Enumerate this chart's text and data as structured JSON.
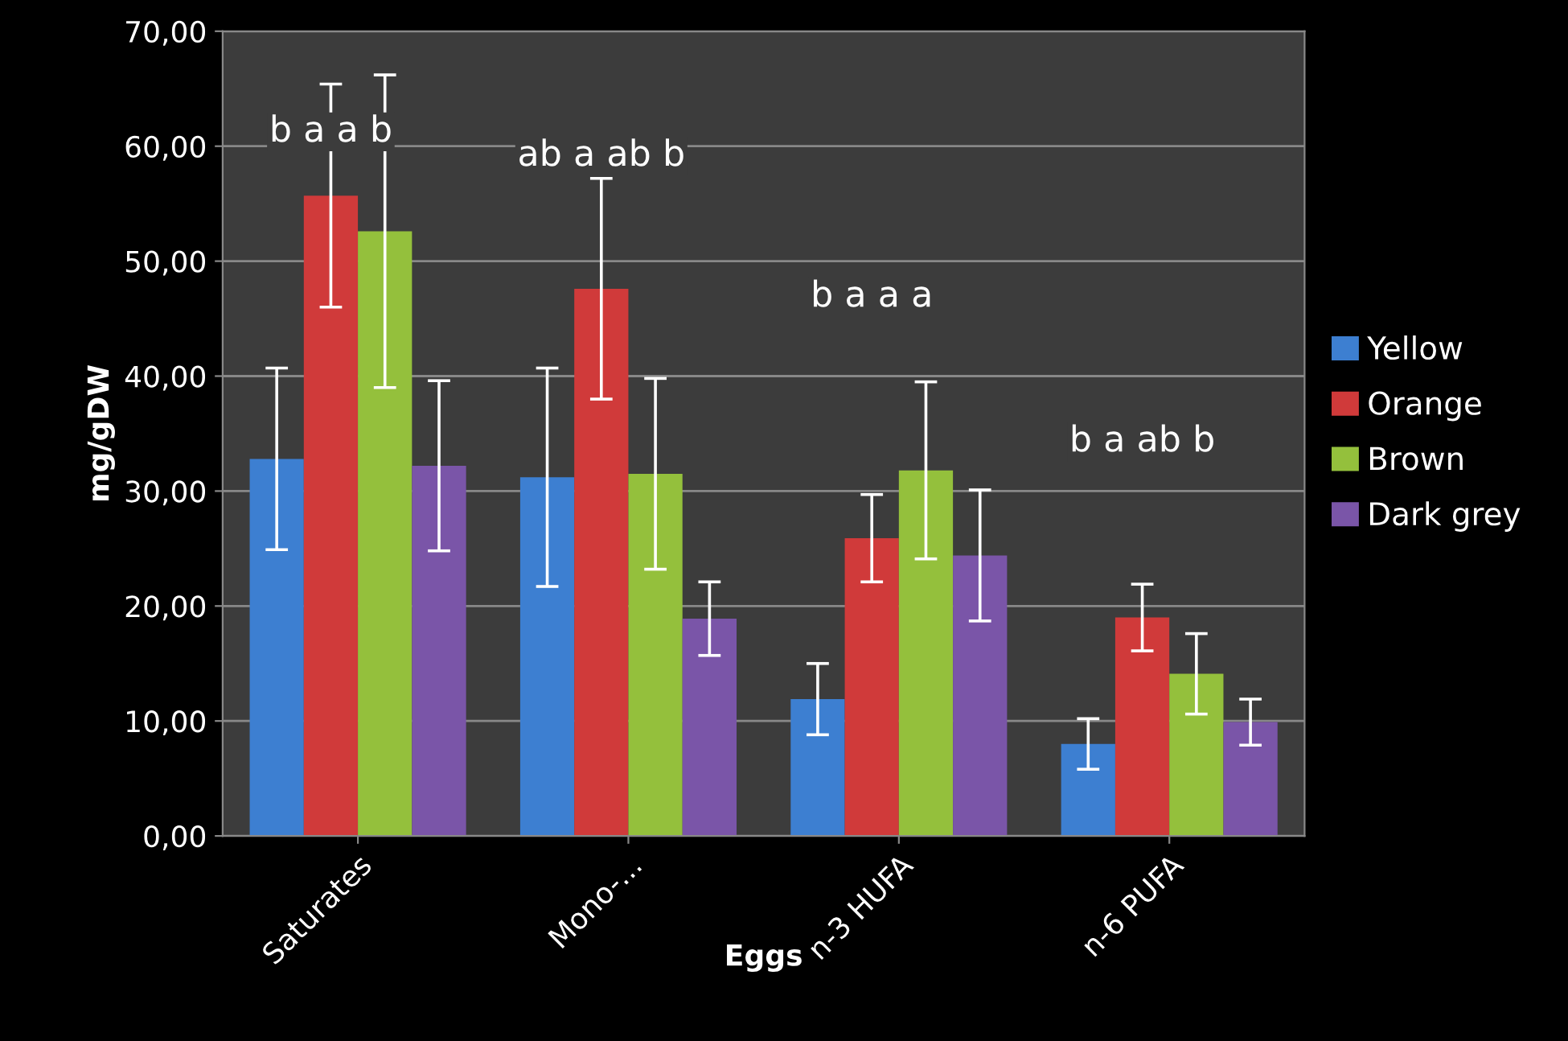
{
  "chart_data": {
    "type": "bar",
    "xlabel": "Eggs",
    "ylabel": "mg/gDW",
    "categories": [
      "Saturates",
      "Mono-...",
      "n-3 HUFA",
      "n-6 PUFA"
    ],
    "series": [
      {
        "name": "Yellow",
        "color": "#3d7fd1",
        "values": [
          32.8,
          31.2,
          11.9,
          8.0
        ],
        "errors": [
          7.9,
          9.5,
          3.1,
          2.2
        ]
      },
      {
        "name": "Orange",
        "color": "#d03a3a",
        "values": [
          55.7,
          47.6,
          25.9,
          19.0
        ],
        "errors": [
          9.7,
          9.6,
          3.8,
          2.9
        ]
      },
      {
        "name": "Brown",
        "color": "#94c03c",
        "values": [
          52.6,
          31.5,
          31.8,
          14.1
        ],
        "errors": [
          13.6,
          8.3,
          7.7,
          3.5
        ]
      },
      {
        "name": "Dark grey",
        "color": "#7a55a8",
        "values": [
          32.2,
          18.9,
          24.4,
          9.9
        ],
        "errors": [
          7.4,
          3.2,
          5.7,
          2.0
        ]
      }
    ],
    "ylim": [
      0,
      70
    ],
    "yticks": [
      {
        "value": 0,
        "label": "0,00"
      },
      {
        "value": 10,
        "label": "10,00"
      },
      {
        "value": 20,
        "label": "20,00"
      },
      {
        "value": 30,
        "label": "30,00"
      },
      {
        "value": 40,
        "label": "40,00"
      },
      {
        "value": 50,
        "label": "50,00"
      },
      {
        "value": 60,
        "label": "60,00"
      },
      {
        "value": 70,
        "label": "70,00"
      }
    ],
    "grid": "y",
    "legend": "right",
    "annotations": [
      "b a a b",
      "ab a ab b",
      "b a a a",
      "b a ab b"
    ]
  }
}
